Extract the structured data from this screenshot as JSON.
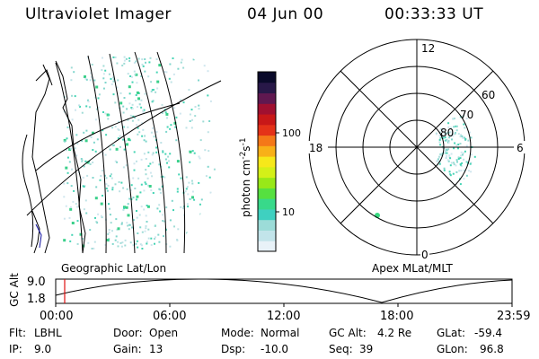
{
  "header": {
    "instrument": "Ultraviolet Imager",
    "date": "04 Jun 00",
    "time": "00:33:33 UT"
  },
  "colorbar": {
    "label_main": "photon cm",
    "label_sup1": "-2",
    "label_mid": "s",
    "label_sup2": "-1",
    "tick_high": "100",
    "tick_low": "10",
    "colors": [
      "#e8f2f8",
      "#c2e4ea",
      "#9cdcd8",
      "#3fd0c0",
      "#38d98a",
      "#56e040",
      "#98e818",
      "#d4f018",
      "#f6e81a",
      "#f8b018",
      "#f47818",
      "#e43218",
      "#c81818",
      "#a01030",
      "#601850",
      "#281848",
      "#0a0a2a"
    ]
  },
  "geo_map": {
    "label": "Geographic Lat/Lon"
  },
  "polar_map": {
    "label": "Apex MLat/MLT",
    "mlt_labels": {
      "top": "12",
      "left": "18",
      "right": "6",
      "bottom": "0"
    },
    "lat_labels": [
      "60",
      "70",
      "80"
    ]
  },
  "orbit_plot": {
    "ylabel_top": "GC Alt",
    "y_ticks": [
      "9.0",
      "1.8"
    ],
    "x_ticks": [
      "00:00",
      "06:00",
      "12:00",
      "18:00",
      "23:59"
    ]
  },
  "status": {
    "filter_label": "Flt:",
    "filter_value": "LBHL",
    "ip_label": "IP:",
    "ip_value": "9.0",
    "door_label": "Door:",
    "door_value": "Open",
    "gain_label": "Gain:",
    "gain_value": "13",
    "mode_label": "Mode:",
    "mode_value": "Normal",
    "dsp_label": "Dsp:",
    "dsp_value": "-10.0",
    "gcalt_label": "GC Alt:",
    "gcalt_value": "4.2 Re",
    "seq_label": "Seq:",
    "seq_value": "39",
    "glat_label": "GLat:",
    "glat_value": "-59.4",
    "glon_label": "GLon:",
    "glon_value": "96.8"
  }
}
